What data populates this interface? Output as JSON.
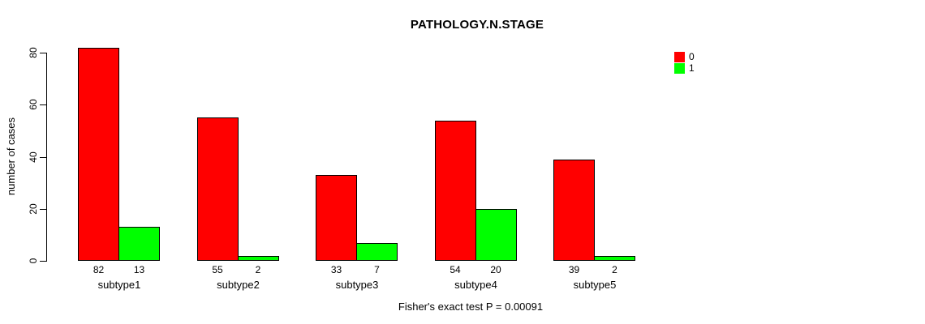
{
  "chart_data": {
    "type": "bar",
    "title": "PATHOLOGY.N.STAGE",
    "xlabel": "",
    "ylabel": "number of cases",
    "categories": [
      "subtype1",
      "subtype2",
      "subtype3",
      "subtype4",
      "subtype5"
    ],
    "series": [
      {
        "name": "0",
        "color": "#FF0000",
        "values": [
          82,
          55,
          33,
          54,
          39
        ]
      },
      {
        "name": "1",
        "color": "#00FF00",
        "values": [
          13,
          2,
          7,
          20,
          2
        ]
      }
    ],
    "ylim": [
      0,
      80
    ],
    "yticks": [
      0,
      20,
      40,
      60,
      80
    ],
    "grid": false,
    "bar_value_labels_shown": true,
    "legend_position": "top-right",
    "legend_items": [
      {
        "label": "0",
        "color": "#FF0000"
      },
      {
        "label": "1",
        "color": "#00FF00"
      }
    ],
    "annotation": "Fisher's exact test P = 0.00091"
  },
  "style": {
    "axis_color": "#000000",
    "bar_border_color": "#000000",
    "background": "#FFFFFF"
  }
}
